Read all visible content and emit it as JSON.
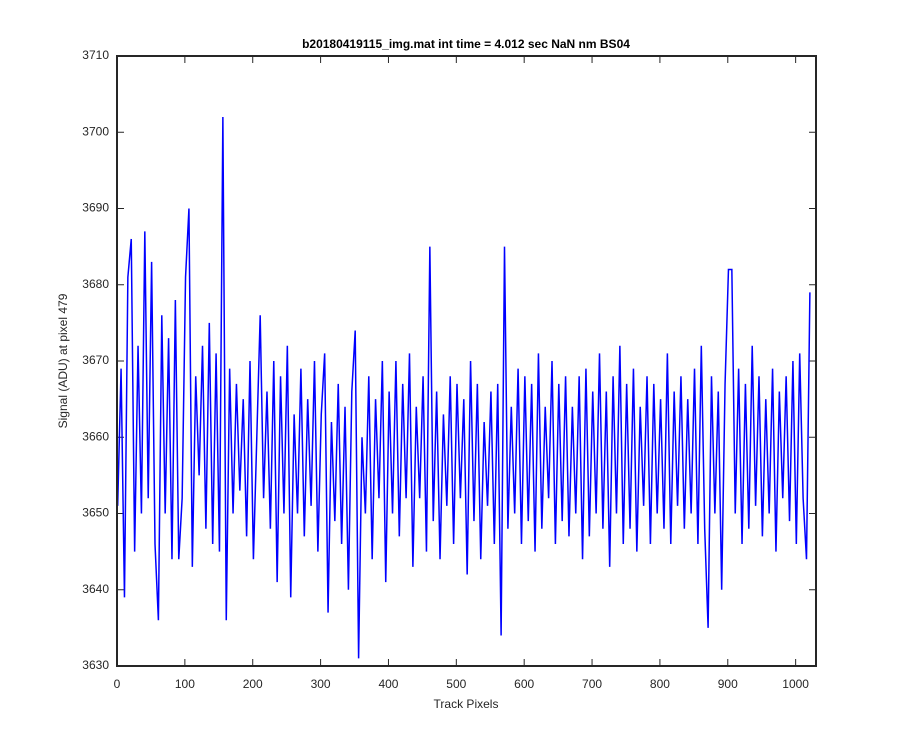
{
  "chart_data": {
    "type": "line",
    "title": "b20180419115_img.mat int time = 4.012 sec  NaN nm BS04",
    "x_label": "Track Pixels",
    "y_label": "Signal (ADU) at pixel 479",
    "color": "#0000ff",
    "xlim": [
      0,
      1030
    ],
    "ylim": [
      3630,
      3710
    ],
    "xticks": [
      0,
      100,
      200,
      300,
      400,
      500,
      600,
      700,
      800,
      900,
      1000
    ],
    "yticks": [
      3630,
      3640,
      3650,
      3660,
      3670,
      3680,
      3690,
      3700,
      3710
    ],
    "grid": false,
    "x": [
      1,
      6,
      11,
      16,
      21,
      26,
      31,
      36,
      41,
      46,
      51,
      56,
      61,
      66,
      71,
      76,
      81,
      86,
      91,
      96,
      101,
      106,
      111,
      116,
      121,
      126,
      131,
      136,
      141,
      146,
      151,
      156,
      161,
      166,
      171,
      176,
      181,
      186,
      191,
      196,
      201,
      206,
      211,
      216,
      221,
      226,
      231,
      236,
      241,
      246,
      251,
      256,
      261,
      266,
      271,
      276,
      281,
      286,
      291,
      296,
      301,
      306,
      311,
      316,
      321,
      326,
      331,
      336,
      341,
      346,
      351,
      356,
      361,
      366,
      371,
      376,
      381,
      386,
      391,
      396,
      401,
      406,
      411,
      416,
      421,
      426,
      431,
      436,
      441,
      446,
      451,
      456,
      461,
      466,
      471,
      476,
      481,
      486,
      491,
      496,
      501,
      506,
      511,
      516,
      521,
      526,
      531,
      536,
      541,
      546,
      551,
      556,
      561,
      566,
      571,
      576,
      581,
      586,
      591,
      596,
      601,
      606,
      611,
      616,
      621,
      626,
      631,
      636,
      641,
      646,
      651,
      656,
      661,
      666,
      671,
      676,
      681,
      686,
      691,
      696,
      701,
      706,
      711,
      716,
      721,
      726,
      731,
      736,
      741,
      746,
      751,
      756,
      761,
      766,
      771,
      776,
      781,
      786,
      791,
      796,
      801,
      806,
      811,
      816,
      821,
      826,
      831,
      836,
      841,
      846,
      851,
      856,
      861,
      866,
      871,
      876,
      881,
      886,
      891,
      896,
      901,
      906,
      911,
      916,
      921,
      926,
      931,
      936,
      941,
      946,
      951,
      956,
      961,
      966,
      971,
      976,
      981,
      986,
      991,
      996,
      1001,
      1006,
      1011,
      1016,
      1021
    ],
    "values": [
      3651,
      3669,
      3639,
      3681,
      3686,
      3645,
      3672,
      3650,
      3687,
      3652,
      3683,
      3646,
      3636,
      3676,
      3650,
      3673,
      3644,
      3678,
      3644,
      3652,
      3681,
      3690,
      3643,
      3668,
      3655,
      3672,
      3648,
      3675,
      3646,
      3671,
      3645,
      3702,
      3636,
      3669,
      3650,
      3667,
      3653,
      3665,
      3647,
      3670,
      3644,
      3660,
      3676,
      3652,
      3666,
      3648,
      3670,
      3641,
      3668,
      3650,
      3672,
      3639,
      3663,
      3650,
      3669,
      3647,
      3665,
      3651,
      3670,
      3645,
      3663,
      3671,
      3637,
      3662,
      3649,
      3667,
      3646,
      3664,
      3640,
      3666,
      3674,
      3631,
      3660,
      3650,
      3668,
      3644,
      3665,
      3652,
      3670,
      3641,
      3666,
      3650,
      3670,
      3647,
      3667,
      3652,
      3671,
      3643,
      3664,
      3652,
      3668,
      3645,
      3685,
      3649,
      3666,
      3644,
      3663,
      3651,
      3668,
      3646,
      3667,
      3652,
      3665,
      3642,
      3670,
      3649,
      3667,
      3644,
      3662,
      3651,
      3666,
      3646,
      3667,
      3634,
      3685,
      3648,
      3664,
      3650,
      3669,
      3646,
      3668,
      3649,
      3667,
      3645,
      3671,
      3648,
      3664,
      3652,
      3670,
      3646,
      3667,
      3649,
      3668,
      3647,
      3664,
      3650,
      3668,
      3644,
      3669,
      3647,
      3666,
      3650,
      3671,
      3648,
      3666,
      3643,
      3668,
      3650,
      3672,
      3646,
      3667,
      3648,
      3669,
      3645,
      3664,
      3651,
      3668,
      3646,
      3667,
      3650,
      3665,
      3648,
      3671,
      3646,
      3666,
      3651,
      3668,
      3648,
      3665,
      3650,
      3669,
      3646,
      3672,
      3648,
      3635,
      3668,
      3650,
      3666,
      3640,
      3667,
      3682,
      3682,
      3650,
      3669,
      3646,
      3667,
      3648,
      3672,
      3651,
      3668,
      3647,
      3665,
      3650,
      3669,
      3645,
      3666,
      3652,
      3668,
      3649,
      3670,
      3646,
      3671,
      3652,
      3644,
      3679
    ]
  }
}
